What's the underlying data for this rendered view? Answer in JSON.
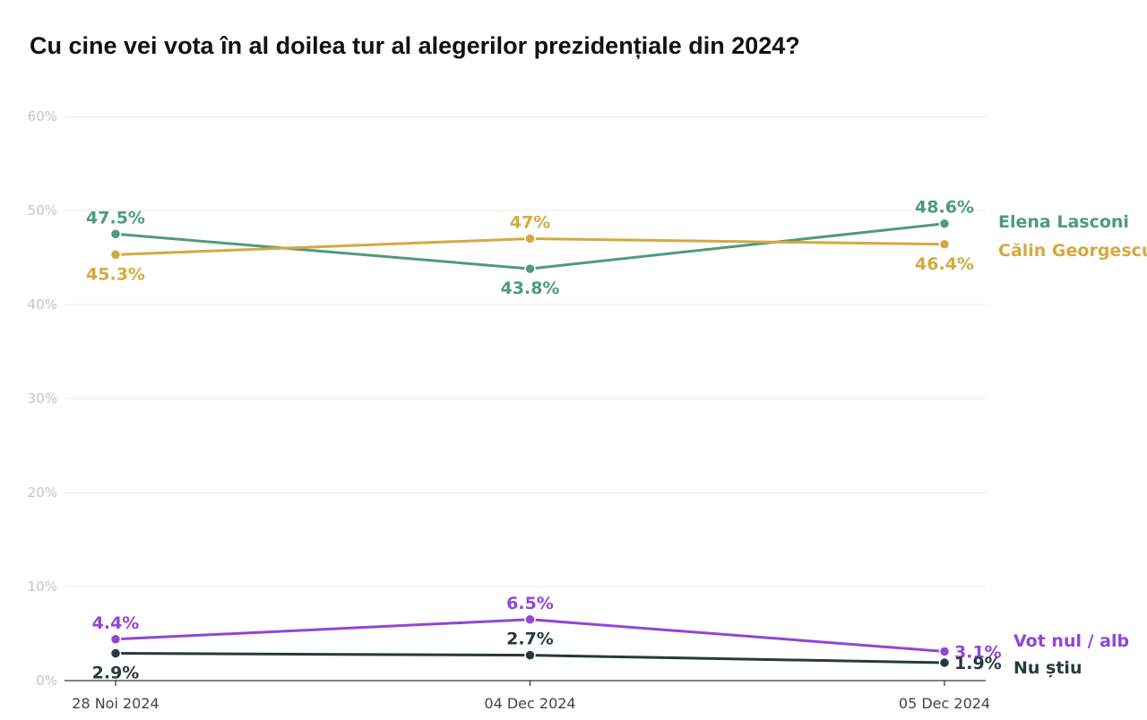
{
  "chart_data": {
    "type": "line",
    "title": "Cu cine vei vota în al doilea tur al alegerilor prezidențiale din 2024?",
    "xlabel": "",
    "ylabel": "",
    "ylim": [
      0,
      60
    ],
    "y_ticks": [
      {
        "value": 0,
        "label": "0%"
      },
      {
        "value": 10,
        "label": "10%"
      },
      {
        "value": 20,
        "label": "20%"
      },
      {
        "value": 30,
        "label": "30%"
      },
      {
        "value": 40,
        "label": "40%"
      },
      {
        "value": 50,
        "label": "50%"
      },
      {
        "value": 60,
        "label": "60%"
      }
    ],
    "grid": true,
    "categories": [
      "28 Noi 2024",
      "04 Dec 2024",
      "05 Dec 2024"
    ],
    "series": [
      {
        "name": "Elena Lasconi",
        "color": "#4e9a80",
        "values": [
          47.5,
          43.8,
          48.6
        ],
        "value_labels": [
          "47.5%",
          "43.8%",
          "48.6%"
        ],
        "label_pos": [
          "above",
          "below",
          "above"
        ]
      },
      {
        "name": "Călin Georgescu",
        "color": "#d4a940",
        "values": [
          45.3,
          47,
          46.4
        ],
        "value_labels": [
          "45.3%",
          "47%",
          "46.4%"
        ],
        "label_pos": [
          "below",
          "above",
          "below"
        ]
      },
      {
        "name": "Vot nul / alb",
        "color": "#9245d6",
        "values": [
          4.4,
          6.5,
          3.1
        ],
        "value_labels": [
          "4.4%",
          "6.5%",
          "3.1%"
        ],
        "label_pos": [
          "above",
          "above",
          "right"
        ]
      },
      {
        "name": "Nu știu",
        "color": "#27393d",
        "values": [
          2.9,
          2.7,
          1.9
        ],
        "value_labels": [
          "2.9%",
          "2.7%",
          "1.9%"
        ],
        "label_pos": [
          "below",
          "above",
          "right"
        ]
      }
    ]
  }
}
